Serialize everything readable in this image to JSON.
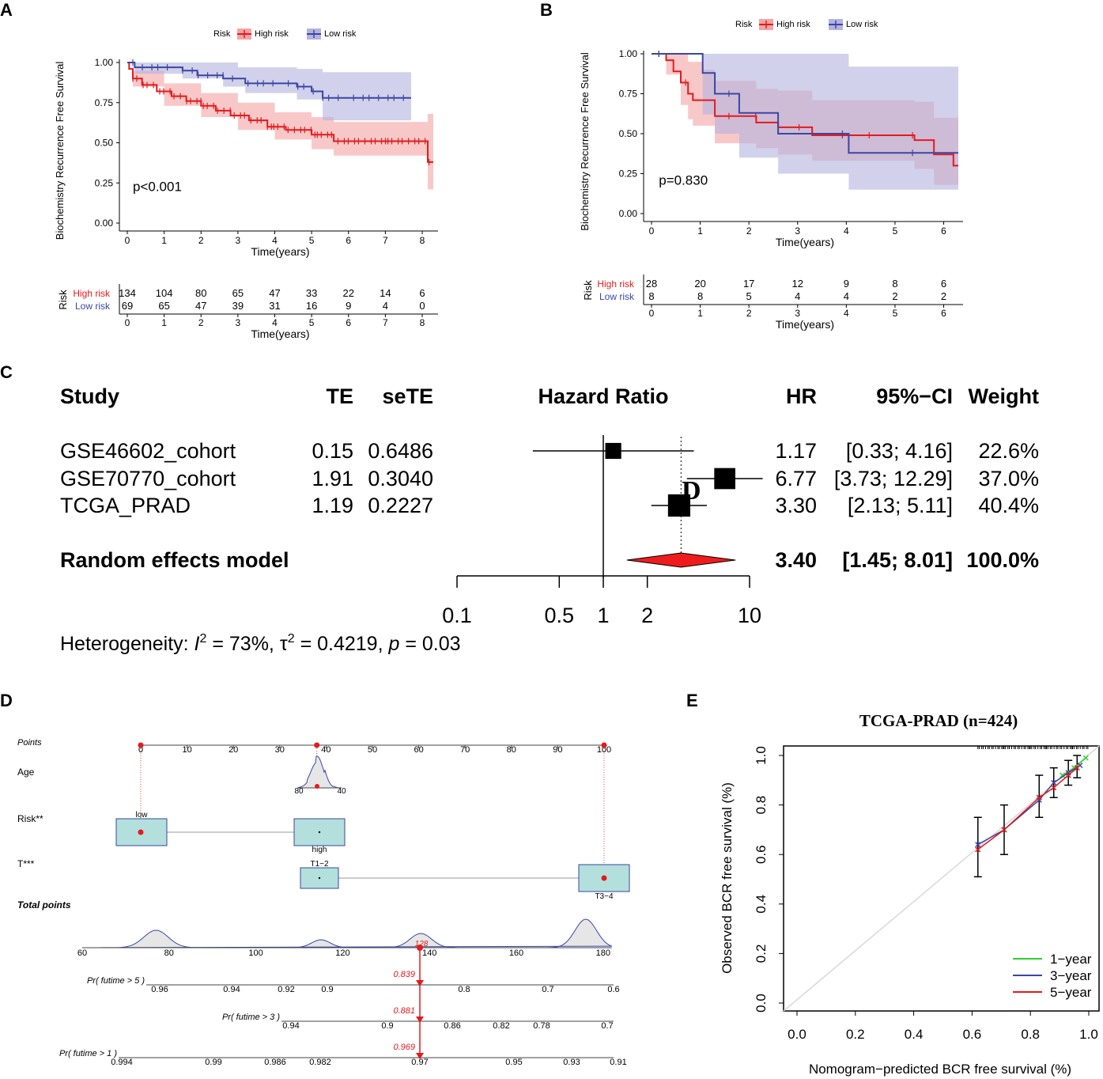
{
  "panel_labels": {
    "a": "A",
    "b": "B",
    "c": "C",
    "d": "D",
    "e": "E"
  },
  "chart_data": [
    {
      "id": "A",
      "type": "line",
      "subtype": "kaplan-meier",
      "legend_title": "Risk",
      "legend": [
        "High risk",
        "Low risk"
      ],
      "xlabel": "Time(years)",
      "ylabel": "Biochemistry Recurrence Free Survival",
      "xlim": [
        0,
        8.3
      ],
      "ylim": [
        0,
        1
      ],
      "xticks": [
        0,
        1,
        2,
        3,
        4,
        5,
        6,
        7,
        8
      ],
      "yticks": [
        "0.00",
        "0.25",
        "0.50",
        "0.75",
        "1.00"
      ],
      "pvalue": "p<0.001",
      "colors": {
        "high": "#e41a1c",
        "low": "#3a46a5",
        "high_fill": "#f4a4a4",
        "low_fill": "#b3b3dd"
      },
      "series": [
        {
          "name": "High risk",
          "steps": [
            [
              0,
              1.0
            ],
            [
              0.05,
              0.96
            ],
            [
              0.15,
              0.9
            ],
            [
              0.4,
              0.86
            ],
            [
              0.8,
              0.82
            ],
            [
              1.2,
              0.79
            ],
            [
              1.6,
              0.76
            ],
            [
              2.0,
              0.73
            ],
            [
              2.4,
              0.7
            ],
            [
              2.8,
              0.67
            ],
            [
              3.3,
              0.64
            ],
            [
              3.8,
              0.6
            ],
            [
              4.3,
              0.58
            ],
            [
              5.0,
              0.55
            ],
            [
              5.6,
              0.51
            ],
            [
              7.9,
              0.51
            ],
            [
              8.15,
              0.38
            ],
            [
              8.3,
              0.38
            ]
          ],
          "upper": [
            [
              0,
              1.0
            ],
            [
              0.15,
              0.95
            ],
            [
              1,
              0.87
            ],
            [
              2,
              0.81
            ],
            [
              3,
              0.75
            ],
            [
              4,
              0.69
            ],
            [
              5,
              0.66
            ],
            [
              5.6,
              0.63
            ],
            [
              7.9,
              0.63
            ],
            [
              8.15,
              0.68
            ],
            [
              8.3,
              0.68
            ]
          ],
          "lower": [
            [
              0,
              1.0
            ],
            [
              0.15,
              0.85
            ],
            [
              1,
              0.73
            ],
            [
              2,
              0.66
            ],
            [
              3,
              0.58
            ],
            [
              4,
              0.52
            ],
            [
              5,
              0.46
            ],
            [
              5.6,
              0.42
            ],
            [
              7.9,
              0.42
            ],
            [
              8.15,
              0.21
            ],
            [
              8.3,
              0.21
            ]
          ]
        },
        {
          "name": "Low risk",
          "steps": [
            [
              0,
              1.0
            ],
            [
              0.2,
              0.97
            ],
            [
              1.5,
              0.95
            ],
            [
              1.9,
              0.92
            ],
            [
              2.6,
              0.9
            ],
            [
              3.2,
              0.87
            ],
            [
              4.6,
              0.85
            ],
            [
              5.0,
              0.82
            ],
            [
              5.3,
              0.78
            ],
            [
              7.7,
              0.78
            ]
          ],
          "upper": [
            [
              0,
              1.0
            ],
            [
              1.5,
              1.0
            ],
            [
              3,
              0.97
            ],
            [
              4.6,
              0.96
            ],
            [
              5.3,
              0.94
            ],
            [
              7.7,
              0.94
            ]
          ],
          "lower": [
            [
              0,
              1.0
            ],
            [
              0.2,
              0.93
            ],
            [
              1.5,
              0.9
            ],
            [
              2.6,
              0.85
            ],
            [
              3.2,
              0.81
            ],
            [
              4.6,
              0.77
            ],
            [
              5.3,
              0.64
            ],
            [
              7.7,
              0.64
            ]
          ]
        }
      ],
      "risk_table": {
        "title": "Risk",
        "xlabel": "Time(years)",
        "times": [
          0,
          1,
          2,
          3,
          4,
          5,
          6,
          7,
          8
        ],
        "rows": [
          {
            "name": "High risk",
            "values": [
              "134",
              "104",
              "80",
              "65",
              "47",
              "33",
              "22",
              "14",
              "6"
            ]
          },
          {
            "name": "Low risk",
            "values": [
              "69",
              "65",
              "47",
              "39",
              "31",
              "16",
              "9",
              "4",
              "0"
            ]
          }
        ]
      }
    },
    {
      "id": "B",
      "type": "line",
      "subtype": "kaplan-meier",
      "legend_title": "Risk",
      "legend": [
        "High risk",
        "Low risk"
      ],
      "xlabel": "Time(years)",
      "ylabel": "Biochemistry Recurrence Free Survival",
      "xlim": [
        0,
        6.3
      ],
      "ylim": [
        0,
        1
      ],
      "xticks": [
        0,
        1,
        2,
        3,
        4,
        5,
        6
      ],
      "yticks": [
        "0.00",
        "0.25",
        "0.50",
        "0.75",
        "1.00"
      ],
      "pvalue": "p=0.830",
      "colors": {
        "high": "#e41a1c",
        "low": "#3a46a5",
        "high_fill": "#f4a4a4",
        "low_fill": "#b3b3dd"
      },
      "series": [
        {
          "name": "High risk",
          "steps": [
            [
              0,
              1.0
            ],
            [
              0.3,
              0.96
            ],
            [
              0.45,
              0.89
            ],
            [
              0.6,
              0.82
            ],
            [
              0.75,
              0.75
            ],
            [
              0.85,
              0.71
            ],
            [
              1.05,
              0.71
            ],
            [
              1.3,
              0.61
            ],
            [
              2.15,
              0.57
            ],
            [
              2.6,
              0.54
            ],
            [
              3.3,
              0.49
            ],
            [
              5.4,
              0.46
            ],
            [
              5.8,
              0.37
            ],
            [
              6.2,
              0.37
            ],
            [
              6.2,
              0.3
            ],
            [
              6.3,
              0.3
            ]
          ],
          "upper": [
            [
              0,
              1.0
            ],
            [
              0.3,
              1.0
            ],
            [
              0.75,
              0.95
            ],
            [
              1.05,
              0.9
            ],
            [
              1.3,
              0.83
            ],
            [
              2.15,
              0.78
            ],
            [
              2.6,
              0.77
            ],
            [
              3.3,
              0.71
            ],
            [
              5.4,
              0.7
            ],
            [
              5.8,
              0.6
            ],
            [
              6.3,
              0.6
            ]
          ],
          "lower": [
            [
              0,
              1.0
            ],
            [
              0.3,
              0.87
            ],
            [
              0.6,
              0.68
            ],
            [
              0.75,
              0.59
            ],
            [
              0.85,
              0.55
            ],
            [
              1.3,
              0.44
            ],
            [
              2.15,
              0.41
            ],
            [
              2.6,
              0.37
            ],
            [
              3.3,
              0.33
            ],
            [
              5.4,
              0.28
            ],
            [
              5.8,
              0.18
            ],
            [
              6.3,
              0.15
            ]
          ]
        },
        {
          "name": "Low risk",
          "steps": [
            [
              0,
              1.0
            ],
            [
              1.05,
              1.0
            ],
            [
              1.05,
              0.88
            ],
            [
              1.3,
              0.75
            ],
            [
              1.8,
              0.63
            ],
            [
              2.6,
              0.5
            ],
            [
              4.05,
              0.38
            ],
            [
              6.3,
              0.38
            ]
          ],
          "upper": [
            [
              0,
              1.0
            ],
            [
              1.05,
              1.0
            ],
            [
              4.05,
              1.0
            ],
            [
              4.05,
              0.92
            ],
            [
              6.3,
              0.92
            ]
          ],
          "lower": [
            [
              0,
              1.0
            ],
            [
              1.05,
              0.62
            ],
            [
              1.3,
              0.5
            ],
            [
              1.8,
              0.35
            ],
            [
              2.6,
              0.25
            ],
            [
              4.05,
              0.15
            ],
            [
              6.3,
              0.15
            ]
          ]
        }
      ],
      "risk_table": {
        "title": "Risk",
        "xlabel": "Time(years)",
        "times": [
          0,
          1,
          2,
          3,
          4,
          5,
          6
        ],
        "rows": [
          {
            "name": "High risk",
            "values": [
              "28",
              "20",
              "17",
              "12",
              "9",
              "8",
              "6"
            ]
          },
          {
            "name": "Low risk",
            "values": [
              "8",
              "8",
              "5",
              "4",
              "4",
              "2",
              "2"
            ]
          }
        ]
      }
    },
    {
      "id": "C",
      "type": "table",
      "subtype": "forest-plot",
      "headers": {
        "study": "Study",
        "te": "TE",
        "sete": "seTE",
        "hr_axis": "Hazard Ratio",
        "hr": "HR",
        "ci": "95%−CI",
        "weight": "Weight"
      },
      "studies": [
        {
          "study": "GSE46602_cohort",
          "te": "0.15",
          "sete": "0.6486",
          "hr": "1.17",
          "ci": "[0.33;  4.16]",
          "weight": "22.6%",
          "hr_value": 1.17,
          "ci_low": 0.33,
          "ci_high": 4.16,
          "weight_value": 22.6
        },
        {
          "study": "GSE70770_cohort",
          "te": "1.91",
          "sete": "0.3040",
          "hr": "6.77",
          "ci": "[3.73; 12.29]",
          "weight": "37.0%",
          "hr_value": 6.77,
          "ci_low": 3.73,
          "ci_high": 12.29,
          "weight_value": 37.0
        },
        {
          "study": "TCGA_PRAD",
          "te": "1.19",
          "sete": "0.2227",
          "hr": "3.30",
          "ci": "[2.13;  5.11]",
          "weight": "40.4%",
          "hr_value": 3.3,
          "ci_low": 2.13,
          "ci_high": 5.11,
          "weight_value": 40.4
        }
      ],
      "pooled": {
        "study": "Random effects model",
        "hr": "3.40",
        "ci": "[1.45;  8.01]",
        "weight": "100.0%",
        "hr_value": 3.4,
        "ci_low": 1.45,
        "ci_high": 8.01
      },
      "axis_ticks": [
        {
          "value": 0.1,
          "label": "0.1"
        },
        {
          "value": 0.5,
          "label": "0.5"
        },
        {
          "value": 1,
          "label": "1"
        },
        {
          "value": 2,
          "label": "2"
        },
        {
          "value": 10,
          "label": "10"
        }
      ],
      "overlap_glyph": "D",
      "heterogeneity": {
        "prefix": "Heterogeneity: ",
        "i2_symbol": "I",
        "i2_value": " = 73%, ",
        "tau_symbol": "τ",
        "tau_value": " = 0.4219, ",
        "p_symbol": "p",
        "p_value": " = 0.03"
      },
      "colors": {
        "diamond": "#ee1c1c"
      }
    },
    {
      "id": "D",
      "type": "diagram",
      "subtype": "nomogram",
      "rows": {
        "points": "Points",
        "age": "Age",
        "risk": "Risk**",
        "t": "T***",
        "total": "Total points"
      },
      "points_ticks": [
        "0",
        "10",
        "20",
        "30",
        "40",
        "50",
        "60",
        "70",
        "80",
        "90",
        "100"
      ],
      "age_axis": {
        "left": "80",
        "right": "40"
      },
      "risk_levels": {
        "low": "low",
        "high": "high"
      },
      "t_levels": {
        "low": "T1−2",
        "high": "T3−4"
      },
      "total_ticks": [
        "60",
        "80",
        "100",
        "120",
        "140",
        "160",
        "180"
      ],
      "total_value": "128",
      "prob_rows": [
        {
          "label": "Pr( futime > 5 )",
          "ticks": [
            "0.96",
            "0.94",
            "0.92",
            "0.9",
            "0.8",
            "0.7",
            "0.6"
          ],
          "value": "0.839"
        },
        {
          "label": "Pr( futime > 3 )",
          "ticks": [
            "0.94",
            "0.9",
            "0.86",
            "0.82",
            "0.78",
            "0.7"
          ],
          "value": "0.881"
        },
        {
          "label": "Pr( futime > 1 )",
          "ticks": [
            "0.994",
            "0.99",
            "0.986",
            "0.982",
            "0.97",
            "0.95",
            "0.93",
            "0.91"
          ],
          "value": "0.969"
        }
      ],
      "colors": {
        "box": "#b3e0dc",
        "point": "#e41a1c",
        "density": "#3a46a5"
      }
    },
    {
      "id": "E",
      "type": "line",
      "subtype": "calibration",
      "title": "TCGA-PRAD (n=424)",
      "xlabel": "Nomogram−predicted BCR free survival (%)",
      "ylabel": "Observed BCR free survival (%)",
      "xlim": [
        0,
        1
      ],
      "ylim": [
        0,
        1
      ],
      "xticks": [
        "0.0",
        "0.2",
        "0.4",
        "0.6",
        "0.8",
        "1.0"
      ],
      "yticks": [
        "0.0",
        "0.2",
        "0.4",
        "0.6",
        "0.8",
        "1.0"
      ],
      "legend": [
        "1−year",
        "3−year",
        "5−year"
      ],
      "colors": {
        "1y": "#33cc33",
        "3y": "#3a46a5",
        "5y": "#e41a1c"
      },
      "series": [
        {
          "name": "1−year",
          "x": [
            0.91,
            0.95,
            0.99
          ],
          "y": [
            0.92,
            0.95,
            0.99
          ]
        },
        {
          "name": "3−year",
          "x": [
            0.62,
            0.71,
            0.83,
            0.88,
            0.93,
            0.97
          ],
          "y": [
            0.64,
            0.7,
            0.82,
            0.89,
            0.93,
            0.96
          ]
        },
        {
          "name": "5−year",
          "x": [
            0.62,
            0.71,
            0.83,
            0.88,
            0.93,
            0.96
          ],
          "y": [
            0.62,
            0.7,
            0.83,
            0.87,
            0.92,
            0.95
          ]
        }
      ],
      "errorbars": [
        {
          "x": 0.62,
          "low": 0.51,
          "high": 0.75
        },
        {
          "x": 0.71,
          "low": 0.6,
          "high": 0.8
        },
        {
          "x": 0.83,
          "low": 0.75,
          "high": 0.92
        },
        {
          "x": 0.88,
          "low": 0.83,
          "high": 0.95
        },
        {
          "x": 0.93,
          "low": 0.88,
          "high": 0.98
        },
        {
          "x": 0.96,
          "low": 0.91,
          "high": 1.0
        }
      ]
    }
  ]
}
